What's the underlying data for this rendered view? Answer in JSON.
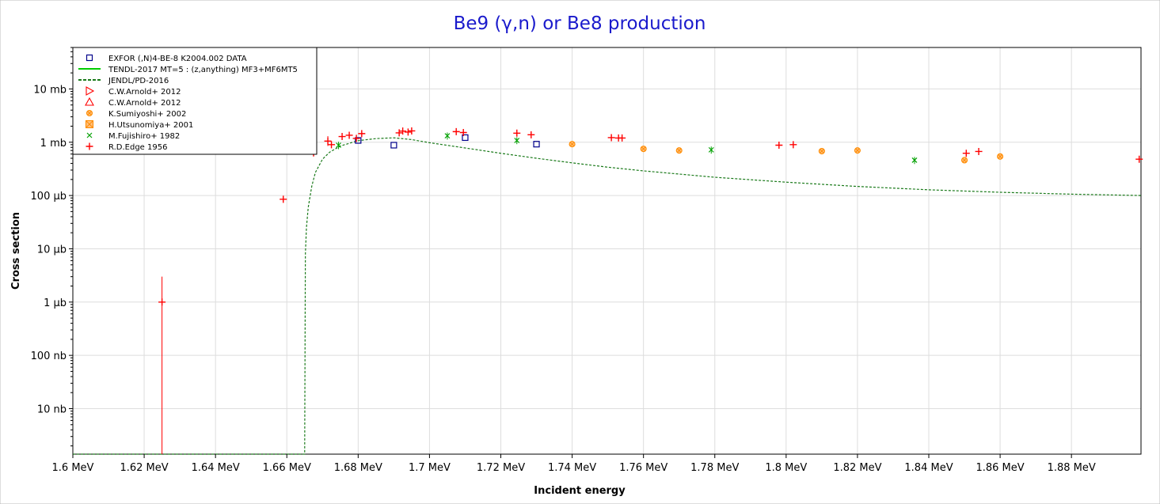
{
  "chart_data": {
    "type": "scatter",
    "title": "Be9 (γ,n) or Be8 production",
    "xlabel": "Incident energy",
    "ylabel": "Cross section",
    "x_unit": "MeV",
    "y_unit": "barn",
    "xlim": [
      1.6,
      1.8995
    ],
    "ylim": [
      1.4e-09,
      0.06
    ],
    "yscale": "log",
    "grid": true,
    "legend_position": "top-left",
    "x_ticks": [
      {
        "value": 1.6,
        "label": "1.6 MeV"
      },
      {
        "value": 1.62,
        "label": "1.62 MeV"
      },
      {
        "value": 1.64,
        "label": "1.64 MeV"
      },
      {
        "value": 1.66,
        "label": "1.66 MeV"
      },
      {
        "value": 1.68,
        "label": "1.68 MeV"
      },
      {
        "value": 1.7,
        "label": "1.7 MeV"
      },
      {
        "value": 1.72,
        "label": "1.72 MeV"
      },
      {
        "value": 1.74,
        "label": "1.74 MeV"
      },
      {
        "value": 1.76,
        "label": "1.76 MeV"
      },
      {
        "value": 1.78,
        "label": "1.78 MeV"
      },
      {
        "value": 1.8,
        "label": "1.8 MeV"
      },
      {
        "value": 1.82,
        "label": "1.82 MeV"
      },
      {
        "value": 1.84,
        "label": "1.84 MeV"
      },
      {
        "value": 1.86,
        "label": "1.86 MeV"
      },
      {
        "value": 1.88,
        "label": "1.88 MeV"
      }
    ],
    "y_ticks": [
      {
        "value": 1e-08,
        "label": "10 nb"
      },
      {
        "value": 1e-07,
        "label": "100 nb"
      },
      {
        "value": 1e-06,
        "label": "1 µb"
      },
      {
        "value": 1e-05,
        "label": "10 µb"
      },
      {
        "value": 0.0001,
        "label": "100 µb"
      },
      {
        "value": 0.001,
        "label": "1 mb"
      },
      {
        "value": 0.01,
        "label": "10 mb"
      }
    ],
    "series": [
      {
        "name": "EXFOR  (,N)4-BE-8 K2004.002 DATA",
        "marker": "square-open",
        "color": "#00008b",
        "points": [
          {
            "x": 1.68,
            "y": 0.00108
          },
          {
            "x": 1.69,
            "y": 0.00088
          },
          {
            "x": 1.71,
            "y": 0.00122
          },
          {
            "x": 1.73,
            "y": 0.00092
          }
        ]
      },
      {
        "name": "TENDL-2017  MT=5 : (z,anything) MF3+MF6MT5",
        "marker": "line-solid",
        "color": "#00cc00",
        "points": []
      },
      {
        "name": "JENDL/PD-2016",
        "marker": "line-dashed",
        "color": "#1a7a1a",
        "points": [
          {
            "x": 1.6,
            "y": 1.4e-09
          },
          {
            "x": 1.665,
            "y": 1.4e-09
          },
          {
            "x": 1.6652,
            "y": 8e-06
          },
          {
            "x": 1.6655,
            "y": 2.5e-05
          },
          {
            "x": 1.666,
            "y": 6e-05
          },
          {
            "x": 1.667,
            "y": 0.00015
          },
          {
            "x": 1.668,
            "y": 0.00027
          },
          {
            "x": 1.67,
            "y": 0.00048
          },
          {
            "x": 1.672,
            "y": 0.00065
          },
          {
            "x": 1.675,
            "y": 0.00085
          },
          {
            "x": 1.68,
            "y": 0.00107
          },
          {
            "x": 1.685,
            "y": 0.00117
          },
          {
            "x": 1.69,
            "y": 0.00121
          },
          {
            "x": 1.695,
            "y": 0.00112
          },
          {
            "x": 1.7,
            "y": 0.00098
          },
          {
            "x": 1.71,
            "y": 0.00078
          },
          {
            "x": 1.72,
            "y": 0.00062
          },
          {
            "x": 1.73,
            "y": 0.0005
          },
          {
            "x": 1.74,
            "y": 0.00041
          },
          {
            "x": 1.75,
            "y": 0.00034
          },
          {
            "x": 1.76,
            "y": 0.00029
          },
          {
            "x": 1.78,
            "y": 0.00022
          },
          {
            "x": 1.8,
            "y": 0.000178
          },
          {
            "x": 1.82,
            "y": 0.000148
          },
          {
            "x": 1.84,
            "y": 0.000128
          },
          {
            "x": 1.86,
            "y": 0.000115
          },
          {
            "x": 1.88,
            "y": 0.000106
          },
          {
            "x": 1.8995,
            "y": 0.0001
          }
        ]
      },
      {
        "name": "C.W.Arnold+ 2012",
        "marker": "triangle-right-open",
        "color": "#ff0000",
        "points": []
      },
      {
        "name": "C.W.Arnold+ 2012",
        "marker": "triangle-up-open",
        "color": "#ff0000",
        "points": []
      },
      {
        "name": "K.Sumiyoshi+ 2002",
        "marker": "circle-x",
        "color": "#ff8c00",
        "points": [
          {
            "x": 1.74,
            "y": 0.00092
          },
          {
            "x": 1.76,
            "y": 0.00075
          },
          {
            "x": 1.77,
            "y": 0.0007
          },
          {
            "x": 1.81,
            "y": 0.00068
          },
          {
            "x": 1.82,
            "y": 0.0007
          },
          {
            "x": 1.85,
            "y": 0.00046
          },
          {
            "x": 1.86,
            "y": 0.00054
          }
        ]
      },
      {
        "name": "H.Utsunomiya+ 2001",
        "marker": "square-x",
        "color": "#ff8c00",
        "points": []
      },
      {
        "name": "M.Fujishiro+ 1982",
        "marker": "x",
        "color": "#00a000",
        "points": [
          {
            "x": 1.6745,
            "y": 0.00088,
            "yerr_lo": 0.00074,
            "yerr_hi": 0.00102
          },
          {
            "x": 1.705,
            "y": 0.00132,
            "yerr_lo": 0.00112,
            "yerr_hi": 0.00152
          },
          {
            "x": 1.7245,
            "y": 0.00108,
            "yerr_lo": 0.00092,
            "yerr_hi": 0.00124
          },
          {
            "x": 1.779,
            "y": 0.00072,
            "yerr_lo": 0.00061,
            "yerr_hi": 0.00083
          },
          {
            "x": 1.836,
            "y": 0.00046,
            "yerr_lo": 0.00039,
            "yerr_hi": 0.00053
          }
        ]
      },
      {
        "name": "R.D.Edge 1956",
        "marker": "plus",
        "color": "#ff0000",
        "points": [
          {
            "x": 1.625,
            "y": 1e-06,
            "yerr_lo": 1.4e-09,
            "yerr_hi": 3e-06
          },
          {
            "x": 1.659,
            "y": 8.5e-05
          },
          {
            "x": 1.6675,
            "y": 0.00063
          },
          {
            "x": 1.6715,
            "y": 0.00105,
            "yerr_lo": 0.00085,
            "yerr_hi": 0.0013
          },
          {
            "x": 1.6725,
            "y": 0.0009
          },
          {
            "x": 1.6755,
            "y": 0.00128
          },
          {
            "x": 1.6775,
            "y": 0.00135
          },
          {
            "x": 1.6795,
            "y": 0.00118
          },
          {
            "x": 1.681,
            "y": 0.00145
          },
          {
            "x": 1.6915,
            "y": 0.0015
          },
          {
            "x": 1.6925,
            "y": 0.00162
          },
          {
            "x": 1.694,
            "y": 0.00155
          },
          {
            "x": 1.695,
            "y": 0.00163
          },
          {
            "x": 1.7075,
            "y": 0.00158
          },
          {
            "x": 1.7095,
            "y": 0.00152
          },
          {
            "x": 1.7245,
            "y": 0.00148
          },
          {
            "x": 1.7285,
            "y": 0.00138
          },
          {
            "x": 1.751,
            "y": 0.00122
          },
          {
            "x": 1.753,
            "y": 0.0012
          },
          {
            "x": 1.754,
            "y": 0.0012
          },
          {
            "x": 1.798,
            "y": 0.00088
          },
          {
            "x": 1.802,
            "y": 0.0009
          },
          {
            "x": 1.8505,
            "y": 0.00062
          },
          {
            "x": 1.854,
            "y": 0.00067
          },
          {
            "x": 1.899,
            "y": 0.00048
          }
        ]
      }
    ]
  }
}
